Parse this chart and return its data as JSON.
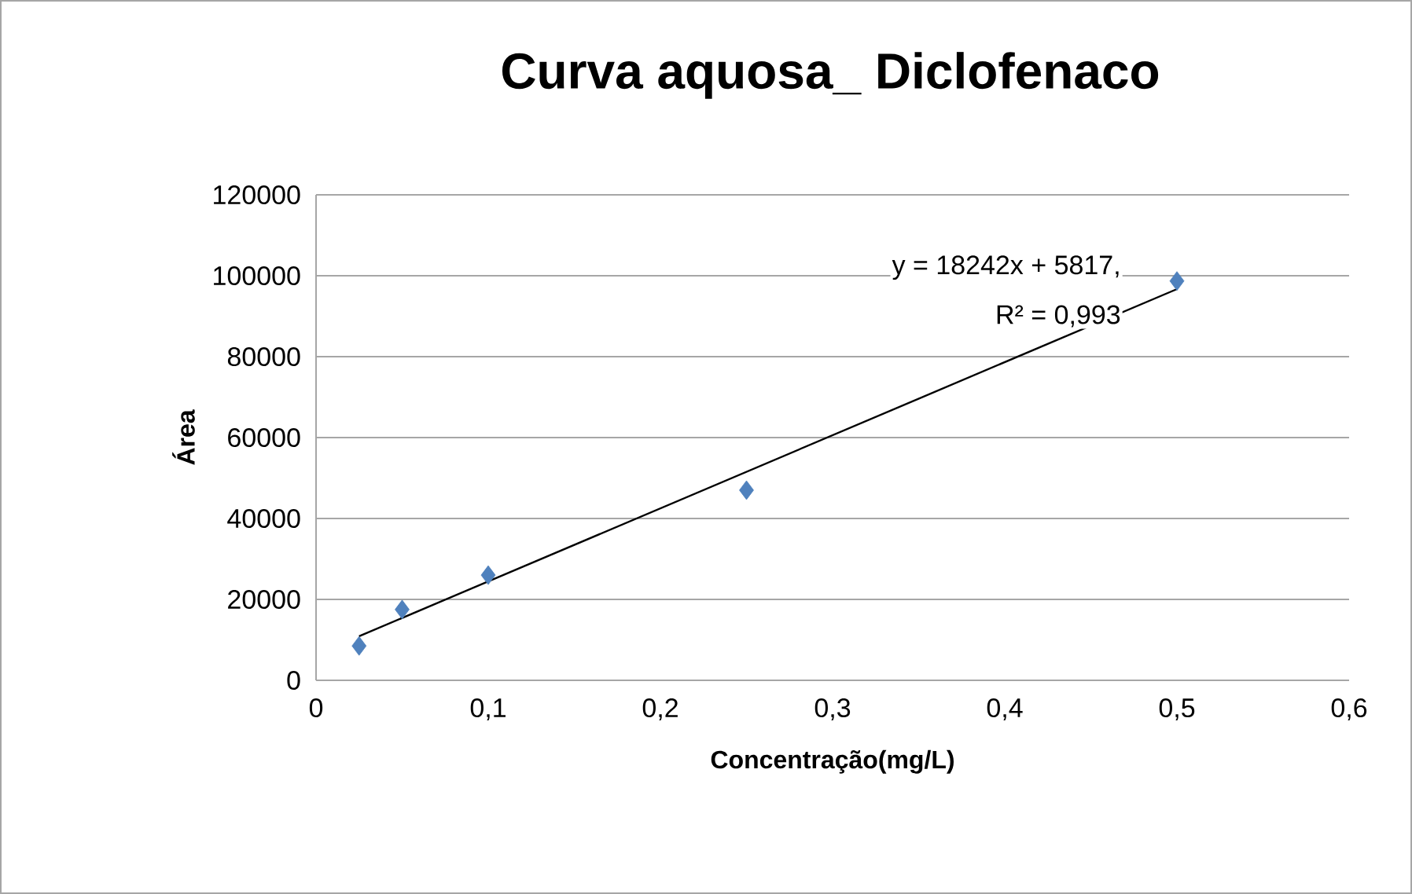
{
  "chart_data": {
    "type": "scatter",
    "title": "Curva aquosa_ Diclofenaco",
    "xlabel": "Concentração(mg/L)",
    "ylabel": "Área",
    "series": [
      {
        "color": "#4f81bd",
        "marker": "diamond",
        "x": [
          0.025,
          0.05,
          0.1,
          0.25,
          0.5
        ],
        "values": [
          8500,
          17500,
          26000,
          47000,
          98700
        ]
      },
      {
        "type": "line",
        "color": "#000000",
        "x": [
          0.025,
          0.5
        ],
        "values": [
          10900,
          96700
        ]
      }
    ],
    "annotations": [
      "y = 18242x + 5817,",
      "R² = 0,993"
    ],
    "xlim": [
      0,
      0.6
    ],
    "ylim": [
      0,
      120000
    ],
    "xticks": [
      0,
      {
        "value": 0.1,
        "label": "0,1"
      },
      {
        "value": 0.2,
        "label": "0,2"
      },
      {
        "value": 0.3,
        "label": "0,3"
      },
      {
        "value": 0.4,
        "label": "0,4"
      },
      {
        "value": 0.5,
        "label": "0,5"
      },
      {
        "value": 0.6,
        "label": "0,6"
      }
    ],
    "yticks": [
      0,
      20000,
      40000,
      60000,
      80000,
      100000,
      120000
    ],
    "grid": "y"
  }
}
